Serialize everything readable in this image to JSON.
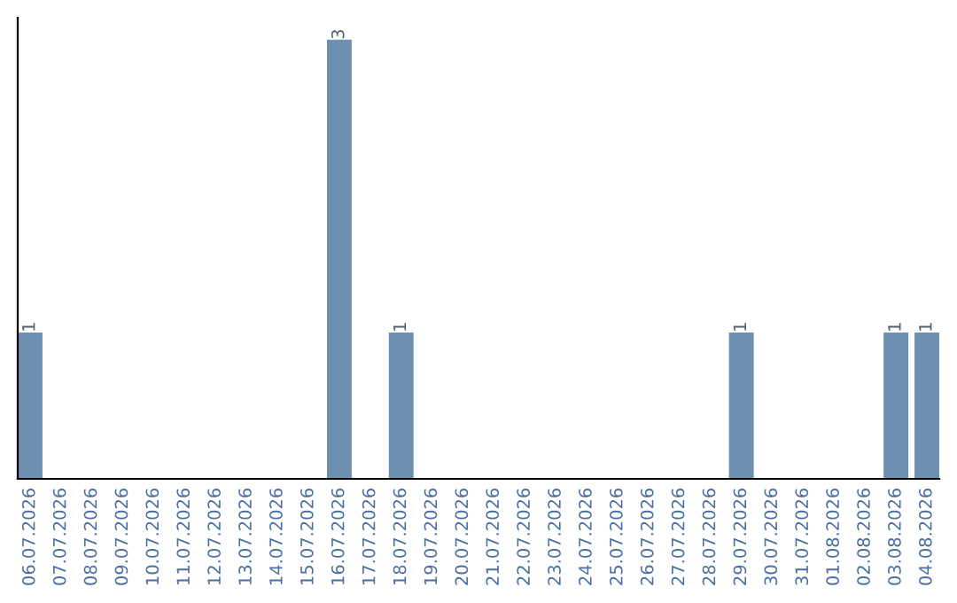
{
  "chart_data": {
    "type": "bar",
    "categories": [
      "06.07.2026",
      "07.07.2026",
      "08.07.2026",
      "09.07.2026",
      "10.07.2026",
      "11.07.2026",
      "12.07.2026",
      "13.07.2026",
      "14.07.2026",
      "15.07.2026",
      "16.07.2026",
      "17.07.2026",
      "18.07.2026",
      "19.07.2026",
      "20.07.2026",
      "21.07.2026",
      "22.07.2026",
      "23.07.2026",
      "24.07.2026",
      "25.07.2026",
      "26.07.2026",
      "27.07.2026",
      "28.07.2026",
      "29.07.2026",
      "30.07.2026",
      "31.07.2026",
      "01.08.2026",
      "02.08.2026",
      "03.08.2026",
      "04.08.2026"
    ],
    "values": [
      1,
      0,
      0,
      0,
      0,
      0,
      0,
      0,
      0,
      0,
      3,
      0,
      1,
      0,
      0,
      0,
      0,
      0,
      0,
      0,
      0,
      0,
      0,
      1,
      0,
      0,
      0,
      0,
      1,
      1
    ],
    "value_labels": [
      "1",
      null,
      null,
      null,
      null,
      null,
      null,
      null,
      null,
      null,
      "3",
      null,
      "1",
      null,
      null,
      null,
      null,
      null,
      null,
      null,
      null,
      null,
      null,
      "1",
      null,
      null,
      null,
      null,
      "1",
      "1"
    ],
    "color": "#6d8fb0",
    "tick_labels": "x",
    "grid": false,
    "legend": false
  }
}
